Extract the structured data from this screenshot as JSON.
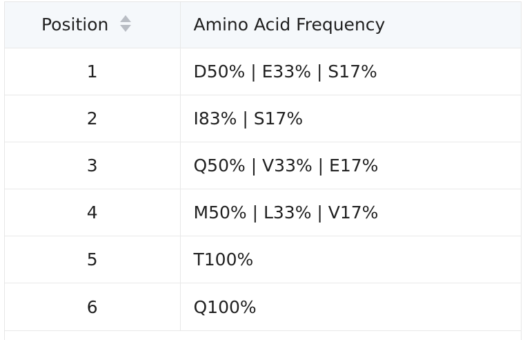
{
  "table": {
    "headers": {
      "position": "Position",
      "frequency": "Amino Acid Frequency"
    },
    "sort_icon": "sort-arrows-icon",
    "colors": {
      "header_bg": "#f5f8fb",
      "border": "#e8e8e8",
      "sort_icon": "#b9bdc4",
      "text": "#1f1f1f"
    },
    "rows": [
      {
        "position": "1",
        "frequency": "D50% | E33% | S17%"
      },
      {
        "position": "2",
        "frequency": "I83% | S17%"
      },
      {
        "position": "3",
        "frequency": "Q50% | V33% | E17%"
      },
      {
        "position": "4",
        "frequency": "M50% | L33% | V17%"
      },
      {
        "position": "5",
        "frequency": "T100%"
      },
      {
        "position": "6",
        "frequency": "Q100%"
      }
    ]
  }
}
